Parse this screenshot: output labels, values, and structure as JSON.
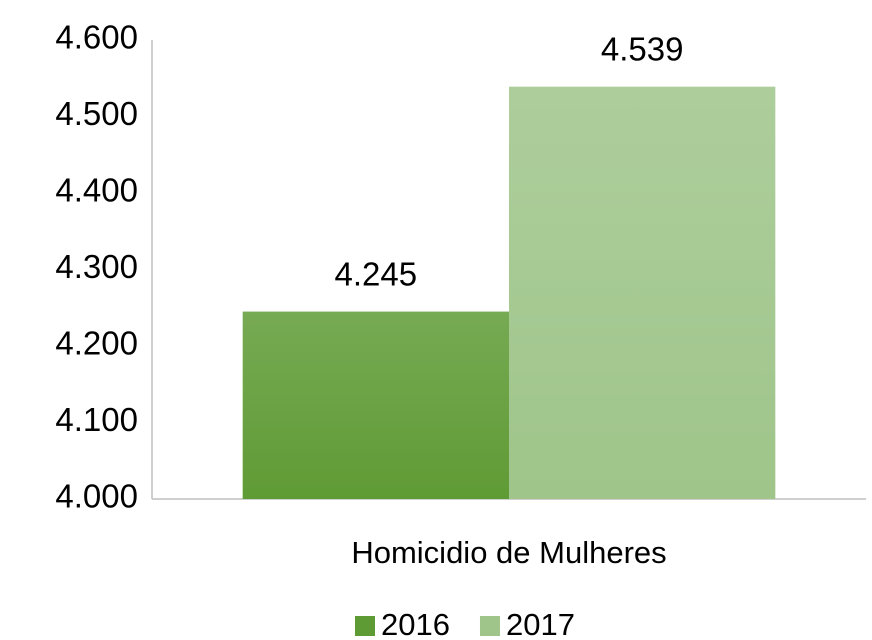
{
  "chart_data": {
    "type": "bar",
    "categories": [
      "Homicidio de Mulheres"
    ],
    "series": [
      {
        "name": "2016",
        "color": "#5f9b35",
        "values": [
          4245
        ],
        "value_labels": [
          "4.245"
        ]
      },
      {
        "name": "2017",
        "color": "#9fc58a",
        "values": [
          4539
        ],
        "value_labels": [
          "4.539"
        ]
      }
    ],
    "ylim": [
      4000,
      4600
    ],
    "yticks": [
      {
        "value": 4000,
        "label": "4.000"
      },
      {
        "value": 4100,
        "label": "4.100"
      },
      {
        "value": 4200,
        "label": "4.200"
      },
      {
        "value": 4300,
        "label": "4.300"
      },
      {
        "value": 4400,
        "label": "4.400"
      },
      {
        "value": 4500,
        "label": "4.500"
      },
      {
        "value": 4600,
        "label": "4.600"
      }
    ],
    "grid": false,
    "legend": "bottom"
  }
}
